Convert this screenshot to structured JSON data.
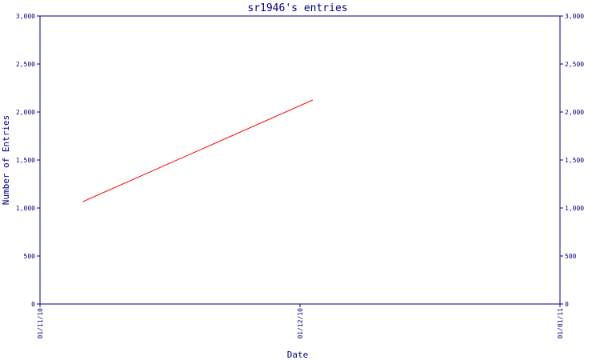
{
  "chart_data": {
    "type": "line",
    "title": "sr1946's entries",
    "xlabel": "Date",
    "ylabel": "Number of Entries",
    "x_ticks": [
      "01/11/10",
      "01/12/10",
      "01/01/11"
    ],
    "y_ticks": [
      "0",
      "500",
      "1,000",
      "1,500",
      "2,000",
      "2,500",
      "3,000"
    ],
    "ylim": [
      0,
      3000
    ],
    "xlim": [
      "2010-11-01",
      "2011-01-01"
    ],
    "right_axis": true,
    "grid": false,
    "colors": {
      "axis": "#000080",
      "series": "#ff0000",
      "background": "#ffffff"
    },
    "series": [
      {
        "x": [
          "2010-11-06",
          "2010-12-03"
        ],
        "values": [
          1065,
          2125
        ]
      }
    ]
  }
}
